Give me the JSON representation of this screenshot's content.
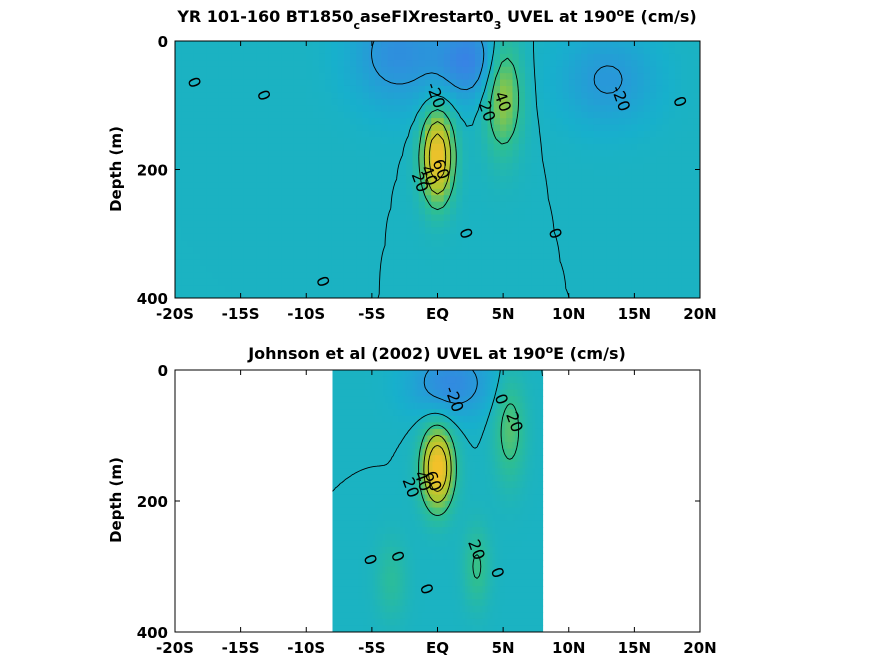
{
  "chart_data": [
    {
      "type": "heatmap",
      "title": "YR 101-160 BT1850",
      "title_sub": "c",
      "title_mid": "aseFIXrestart0",
      "title_sub2": "3",
      "title_after": " UVEL at 190",
      "title_sup": "o",
      "title_end": "E (cm/s)",
      "ylabel": "Depth (m)",
      "xlim": [
        -20,
        20
      ],
      "ylim": [
        0,
        400
      ],
      "xticks": [
        {
          "value": -20,
          "label": "-20S"
        },
        {
          "value": -15,
          "label": "-15S"
        },
        {
          "value": -10,
          "label": "-10S"
        },
        {
          "value": -5,
          "label": "-5S"
        },
        {
          "value": 0,
          "label": "EQ"
        },
        {
          "value": 5,
          "label": "5N"
        },
        {
          "value": 10,
          "label": "10N"
        },
        {
          "value": 15,
          "label": "15N"
        },
        {
          "value": 20,
          "label": "20N"
        }
      ],
      "yticks": [
        {
          "value": 0,
          "label": "0"
        },
        {
          "value": 200,
          "label": "200"
        },
        {
          "value": 400,
          "label": "400"
        }
      ],
      "data_extent": [
        -20,
        20
      ],
      "features": [
        {
          "name": "equatorial-undercurrent",
          "x": 0,
          "y": 180,
          "peak": 80,
          "sx": 1.2,
          "sy": 70
        },
        {
          "name": "ncc-jet",
          "x": 5,
          "y": 80,
          "peak": 45,
          "sx": 1.4,
          "sy": 90
        },
        {
          "name": "sec-north",
          "x": 2.5,
          "y": 30,
          "peak": -35,
          "sx": 2.5,
          "sy": 60
        },
        {
          "name": "sec-south",
          "x": -3,
          "y": 20,
          "peak": -28,
          "sx": 3.5,
          "sy": 80
        },
        {
          "name": "necc-west",
          "x": 13,
          "y": 60,
          "peak": -22,
          "sx": 3.5,
          "sy": 70
        }
      ],
      "contour_labels": [
        {
          "text": "0",
          "x": -18.6,
          "y": 65
        },
        {
          "text": "0",
          "x": -13.3,
          "y": 85
        },
        {
          "text": "-20",
          "x": -0.2,
          "y": 85
        },
        {
          "text": "20",
          "x": 3.7,
          "y": 110
        },
        {
          "text": "40",
          "x": 4.9,
          "y": 95
        },
        {
          "text": "-20",
          "x": 13.9,
          "y": 90
        },
        {
          "text": "0",
          "x": 18.4,
          "y": 95
        },
        {
          "text": "20",
          "x": -1.4,
          "y": 220
        },
        {
          "text": "40",
          "x": -0.7,
          "y": 210
        },
        {
          "text": "60",
          "x": 0.2,
          "y": 200
        },
        {
          "text": "0",
          "x": 2.1,
          "y": 300
        },
        {
          "text": "0",
          "x": 8.9,
          "y": 300
        },
        {
          "text": "0",
          "x": -8.8,
          "y": 375
        }
      ]
    },
    {
      "type": "heatmap",
      "title": "Johnson et al (2002) UVEL at 190",
      "title_sup": "o",
      "title_end": "E (cm/s)",
      "ylabel": "Depth (m)",
      "xlim": [
        -20,
        20
      ],
      "ylim": [
        0,
        400
      ],
      "xticks": [
        {
          "value": -20,
          "label": "-20S"
        },
        {
          "value": -15,
          "label": "-15S"
        },
        {
          "value": -10,
          "label": "-10S"
        },
        {
          "value": -5,
          "label": "-5S"
        },
        {
          "value": 0,
          "label": "EQ"
        },
        {
          "value": 5,
          "label": "5N"
        },
        {
          "value": 10,
          "label": "10N"
        },
        {
          "value": 15,
          "label": "15N"
        },
        {
          "value": 20,
          "label": "20N"
        }
      ],
      "yticks": [
        {
          "value": 0,
          "label": "0"
        },
        {
          "value": 200,
          "label": "200"
        },
        {
          "value": 400,
          "label": "400"
        }
      ],
      "data_extent": [
        -8,
        8
      ],
      "features": [
        {
          "name": "equatorial-undercurrent",
          "x": 0,
          "y": 150,
          "peak": 85,
          "sx": 1.2,
          "sy": 60
        },
        {
          "name": "ncc-jet",
          "x": 5.5,
          "y": 90,
          "peak": 28,
          "sx": 1.2,
          "sy": 80
        },
        {
          "name": "sec-surface",
          "x": 1,
          "y": 20,
          "peak": -32,
          "sx": 3.0,
          "sy": 50
        },
        {
          "name": "deep-jet-north",
          "x": 3,
          "y": 300,
          "peak": 22,
          "sx": 1.0,
          "sy": 60
        },
        {
          "name": "deep-jet-south",
          "x": -3.5,
          "y": 320,
          "peak": 15,
          "sx": 1.2,
          "sy": 60
        }
      ],
      "contour_labels": [
        {
          "text": "-20",
          "x": 1.2,
          "y": 45
        },
        {
          "text": "0",
          "x": 4.8,
          "y": 45
        },
        {
          "text": "20",
          "x": 5.8,
          "y": 80
        },
        {
          "text": "20",
          "x": -2.1,
          "y": 180
        },
        {
          "text": "40",
          "x": -1.2,
          "y": 170
        },
        {
          "text": "60",
          "x": -0.4,
          "y": 170
        },
        {
          "text": "0",
          "x": -5.2,
          "y": 290
        },
        {
          "text": "0",
          "x": -3.1,
          "y": 285
        },
        {
          "text": "20",
          "x": 2.9,
          "y": 275
        },
        {
          "text": "0",
          "x": 4.5,
          "y": 310
        },
        {
          "text": "0",
          "x": -0.9,
          "y": 335
        }
      ]
    }
  ]
}
